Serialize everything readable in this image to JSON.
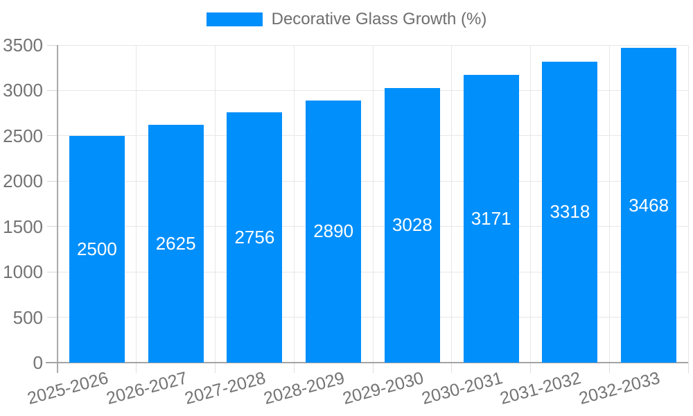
{
  "legend": {
    "series_label": "Decorative Glass Growth (%)",
    "marker_color": "#008FFB"
  },
  "chart_data": {
    "type": "bar",
    "title": "",
    "categories": [
      "2025-2026",
      "2026-2027",
      "2027-2028",
      "2028-2029",
      "2029-2030",
      "2030-2031",
      "2031-2032",
      "2032-2033"
    ],
    "series": [
      {
        "name": "Decorative Glass Growth (%)",
        "values": [
          2500,
          2625,
          2756,
          2890,
          3028,
          3171,
          3318,
          3468
        ]
      }
    ],
    "xlabel": "",
    "ylabel": "",
    "ylim": [
      0,
      3500
    ],
    "yticks": [
      0,
      500,
      1000,
      1500,
      2000,
      2500,
      3000,
      3500
    ],
    "grid": "horizontal-and-vertical",
    "legend_position": "top-center",
    "value_labels_inside_bars": true,
    "colors": {
      "bar": "#008FFB",
      "axis_label_text": "#737373",
      "legend_text": "#6e6e6e",
      "value_text": "#ffffff",
      "gridline": "#e7e7e7",
      "axis_line": "#a3a3a3"
    }
  }
}
